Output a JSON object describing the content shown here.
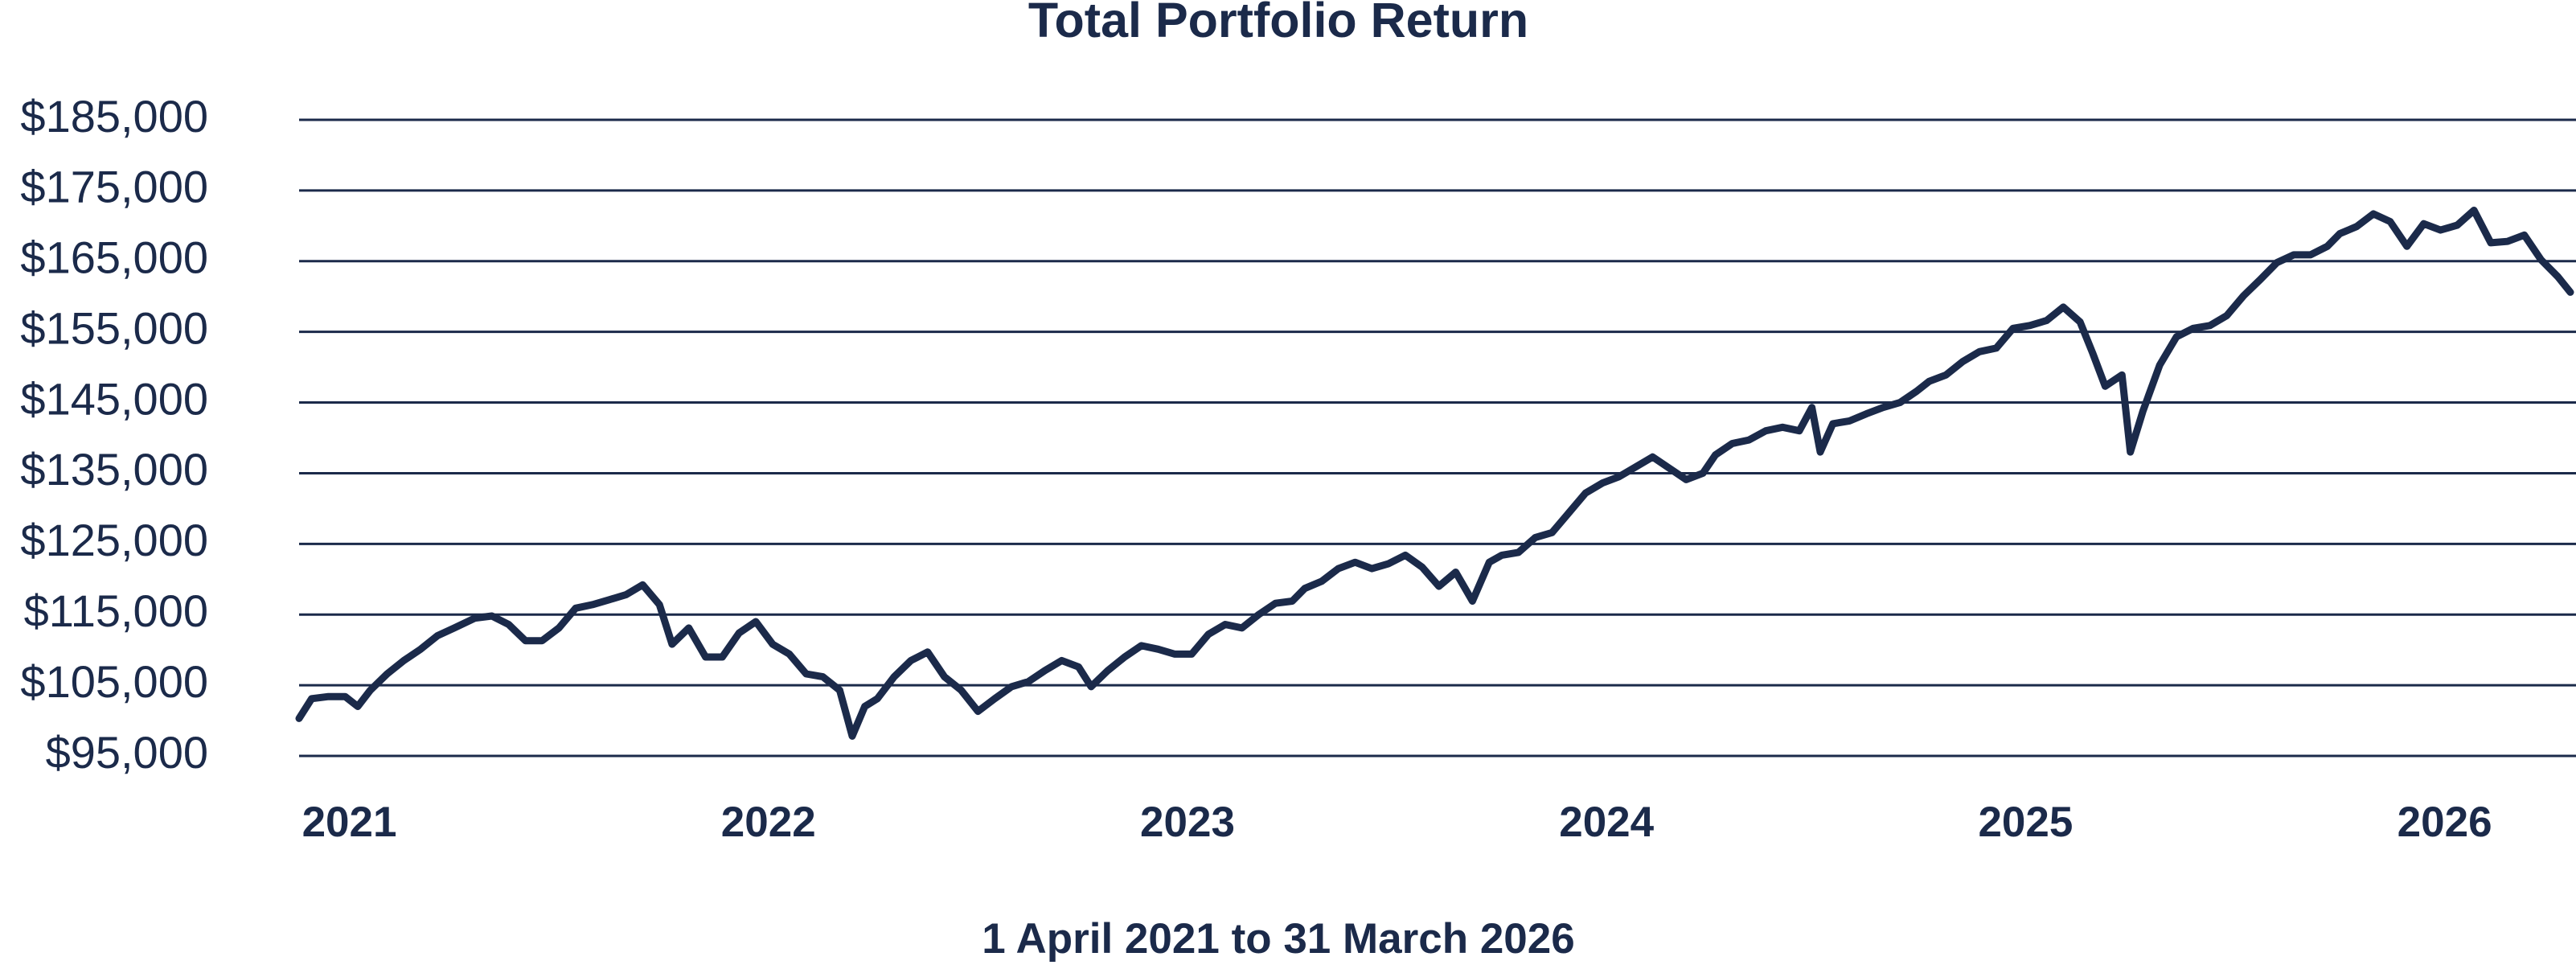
{
  "chart_data": {
    "type": "line",
    "title": "Total Portfolio Return",
    "caption": "1 April 2021 to 31 March 2026",
    "color": "#1b2a4a",
    "grid": true,
    "xlim": [
      2020.88,
      2026.3
    ],
    "xticks": [
      2021,
      2022,
      2023,
      2024,
      2025,
      2026
    ],
    "ylim": [
      95000,
      185000
    ],
    "yticks": [
      {
        "value": 95000,
        "label": "$95,000"
      },
      {
        "value": 105000,
        "label": "$105,000"
      },
      {
        "value": 115000,
        "label": "$115,000"
      },
      {
        "value": 125000,
        "label": "$125,000"
      },
      {
        "value": 135000,
        "label": "$135,000"
      },
      {
        "value": 145000,
        "label": "$145,000"
      },
      {
        "value": 155000,
        "label": "$155,000"
      },
      {
        "value": 165000,
        "label": "$165,000"
      },
      {
        "value": 175000,
        "label": "$175,000"
      },
      {
        "value": 185000,
        "label": "$185,000"
      }
    ],
    "x": [
      2020.88,
      2020.91,
      2020.95,
      2020.99,
      2021.02,
      2021.05,
      2021.09,
      2021.13,
      2021.17,
      2021.21,
      2021.25,
      2021.3,
      2021.34,
      2021.38,
      2021.42,
      2021.46,
      2021.5,
      2021.54,
      2021.58,
      2021.62,
      2021.66,
      2021.7,
      2021.74,
      2021.77,
      2021.81,
      2021.85,
      2021.89,
      2021.93,
      2021.97,
      2022.01,
      2022.05,
      2022.09,
      2022.13,
      2022.17,
      2022.2,
      2022.23,
      2022.26,
      2022.3,
      2022.34,
      2022.38,
      2022.42,
      2022.46,
      2022.5,
      2022.54,
      2022.58,
      2022.62,
      2022.66,
      2022.7,
      2022.74,
      2022.77,
      2022.81,
      2022.85,
      2022.89,
      2022.93,
      2022.97,
      2023.01,
      2023.05,
      2023.09,
      2023.13,
      2023.17,
      2023.21,
      2023.25,
      2023.28,
      2023.32,
      2023.36,
      2023.4,
      2023.44,
      2023.48,
      2023.52,
      2023.56,
      2023.6,
      2023.64,
      2023.68,
      2023.72,
      2023.75,
      2023.79,
      2023.83,
      2023.87,
      2023.91,
      2023.95,
      2023.99,
      2024.03,
      2024.07,
      2024.11,
      2024.15,
      2024.19,
      2024.23,
      2024.26,
      2024.3,
      2024.34,
      2024.38,
      2024.42,
      2024.46,
      2024.49,
      2024.51,
      2024.54,
      2024.58,
      2024.62,
      2024.66,
      2024.7,
      2024.74,
      2024.77,
      2024.81,
      2024.85,
      2024.89,
      2024.93,
      2024.97,
      2025.01,
      2025.05,
      2025.09,
      2025.13,
      2025.16,
      2025.19,
      2025.23,
      2025.25,
      2025.28,
      2025.32,
      2025.36,
      2025.4,
      2025.44,
      2025.48,
      2025.52,
      2025.56,
      2025.6,
      2025.64,
      2025.68,
      2025.72,
      2025.75,
      2025.79,
      2025.83,
      2025.87,
      2025.91,
      2025.95,
      2025.99,
      2026.03,
      2026.07,
      2026.11,
      2026.15,
      2026.19,
      2026.23,
      2026.27,
      2026.3
    ],
    "values": [
      100300,
      103100,
      103400,
      103400,
      102000,
      104300,
      106600,
      108500,
      110100,
      112000,
      113100,
      114500,
      114800,
      113600,
      111300,
      111300,
      113100,
      115900,
      116400,
      117100,
      117800,
      119200,
      116400,
      110800,
      113100,
      109000,
      109000,
      112400,
      114000,
      110800,
      109400,
      106600,
      106200,
      104300,
      97800,
      102000,
      103100,
      106200,
      108500,
      109700,
      106200,
      104300,
      101300,
      103100,
      104800,
      105500,
      107100,
      108500,
      107600,
      104800,
      107100,
      109000,
      110600,
      110100,
      109400,
      109400,
      112200,
      113600,
      113100,
      115000,
      116600,
      116900,
      118700,
      119700,
      121500,
      122400,
      121500,
      122200,
      123400,
      121700,
      119000,
      121000,
      116900,
      122400,
      123400,
      123800,
      125900,
      126600,
      129400,
      132200,
      133600,
      134500,
      135900,
      137300,
      135700,
      134100,
      135000,
      137600,
      139200,
      139700,
      141000,
      141500,
      141000,
      144300,
      138000,
      142000,
      142400,
      143400,
      144300,
      145000,
      146600,
      148000,
      148900,
      150800,
      152200,
      152700,
      155500,
      155900,
      156600,
      158500,
      156400,
      152000,
      147300,
      148900,
      138000,
      143800,
      150300,
      154300,
      155500,
      155900,
      157300,
      160100,
      162400,
      164800,
      165900,
      165900,
      167100,
      168900,
      169900,
      171700,
      170600,
      167100,
      170300,
      169400,
      170100,
      172200,
      167600,
      167800,
      168700,
      165200,
      162800,
      160600
    ]
  }
}
